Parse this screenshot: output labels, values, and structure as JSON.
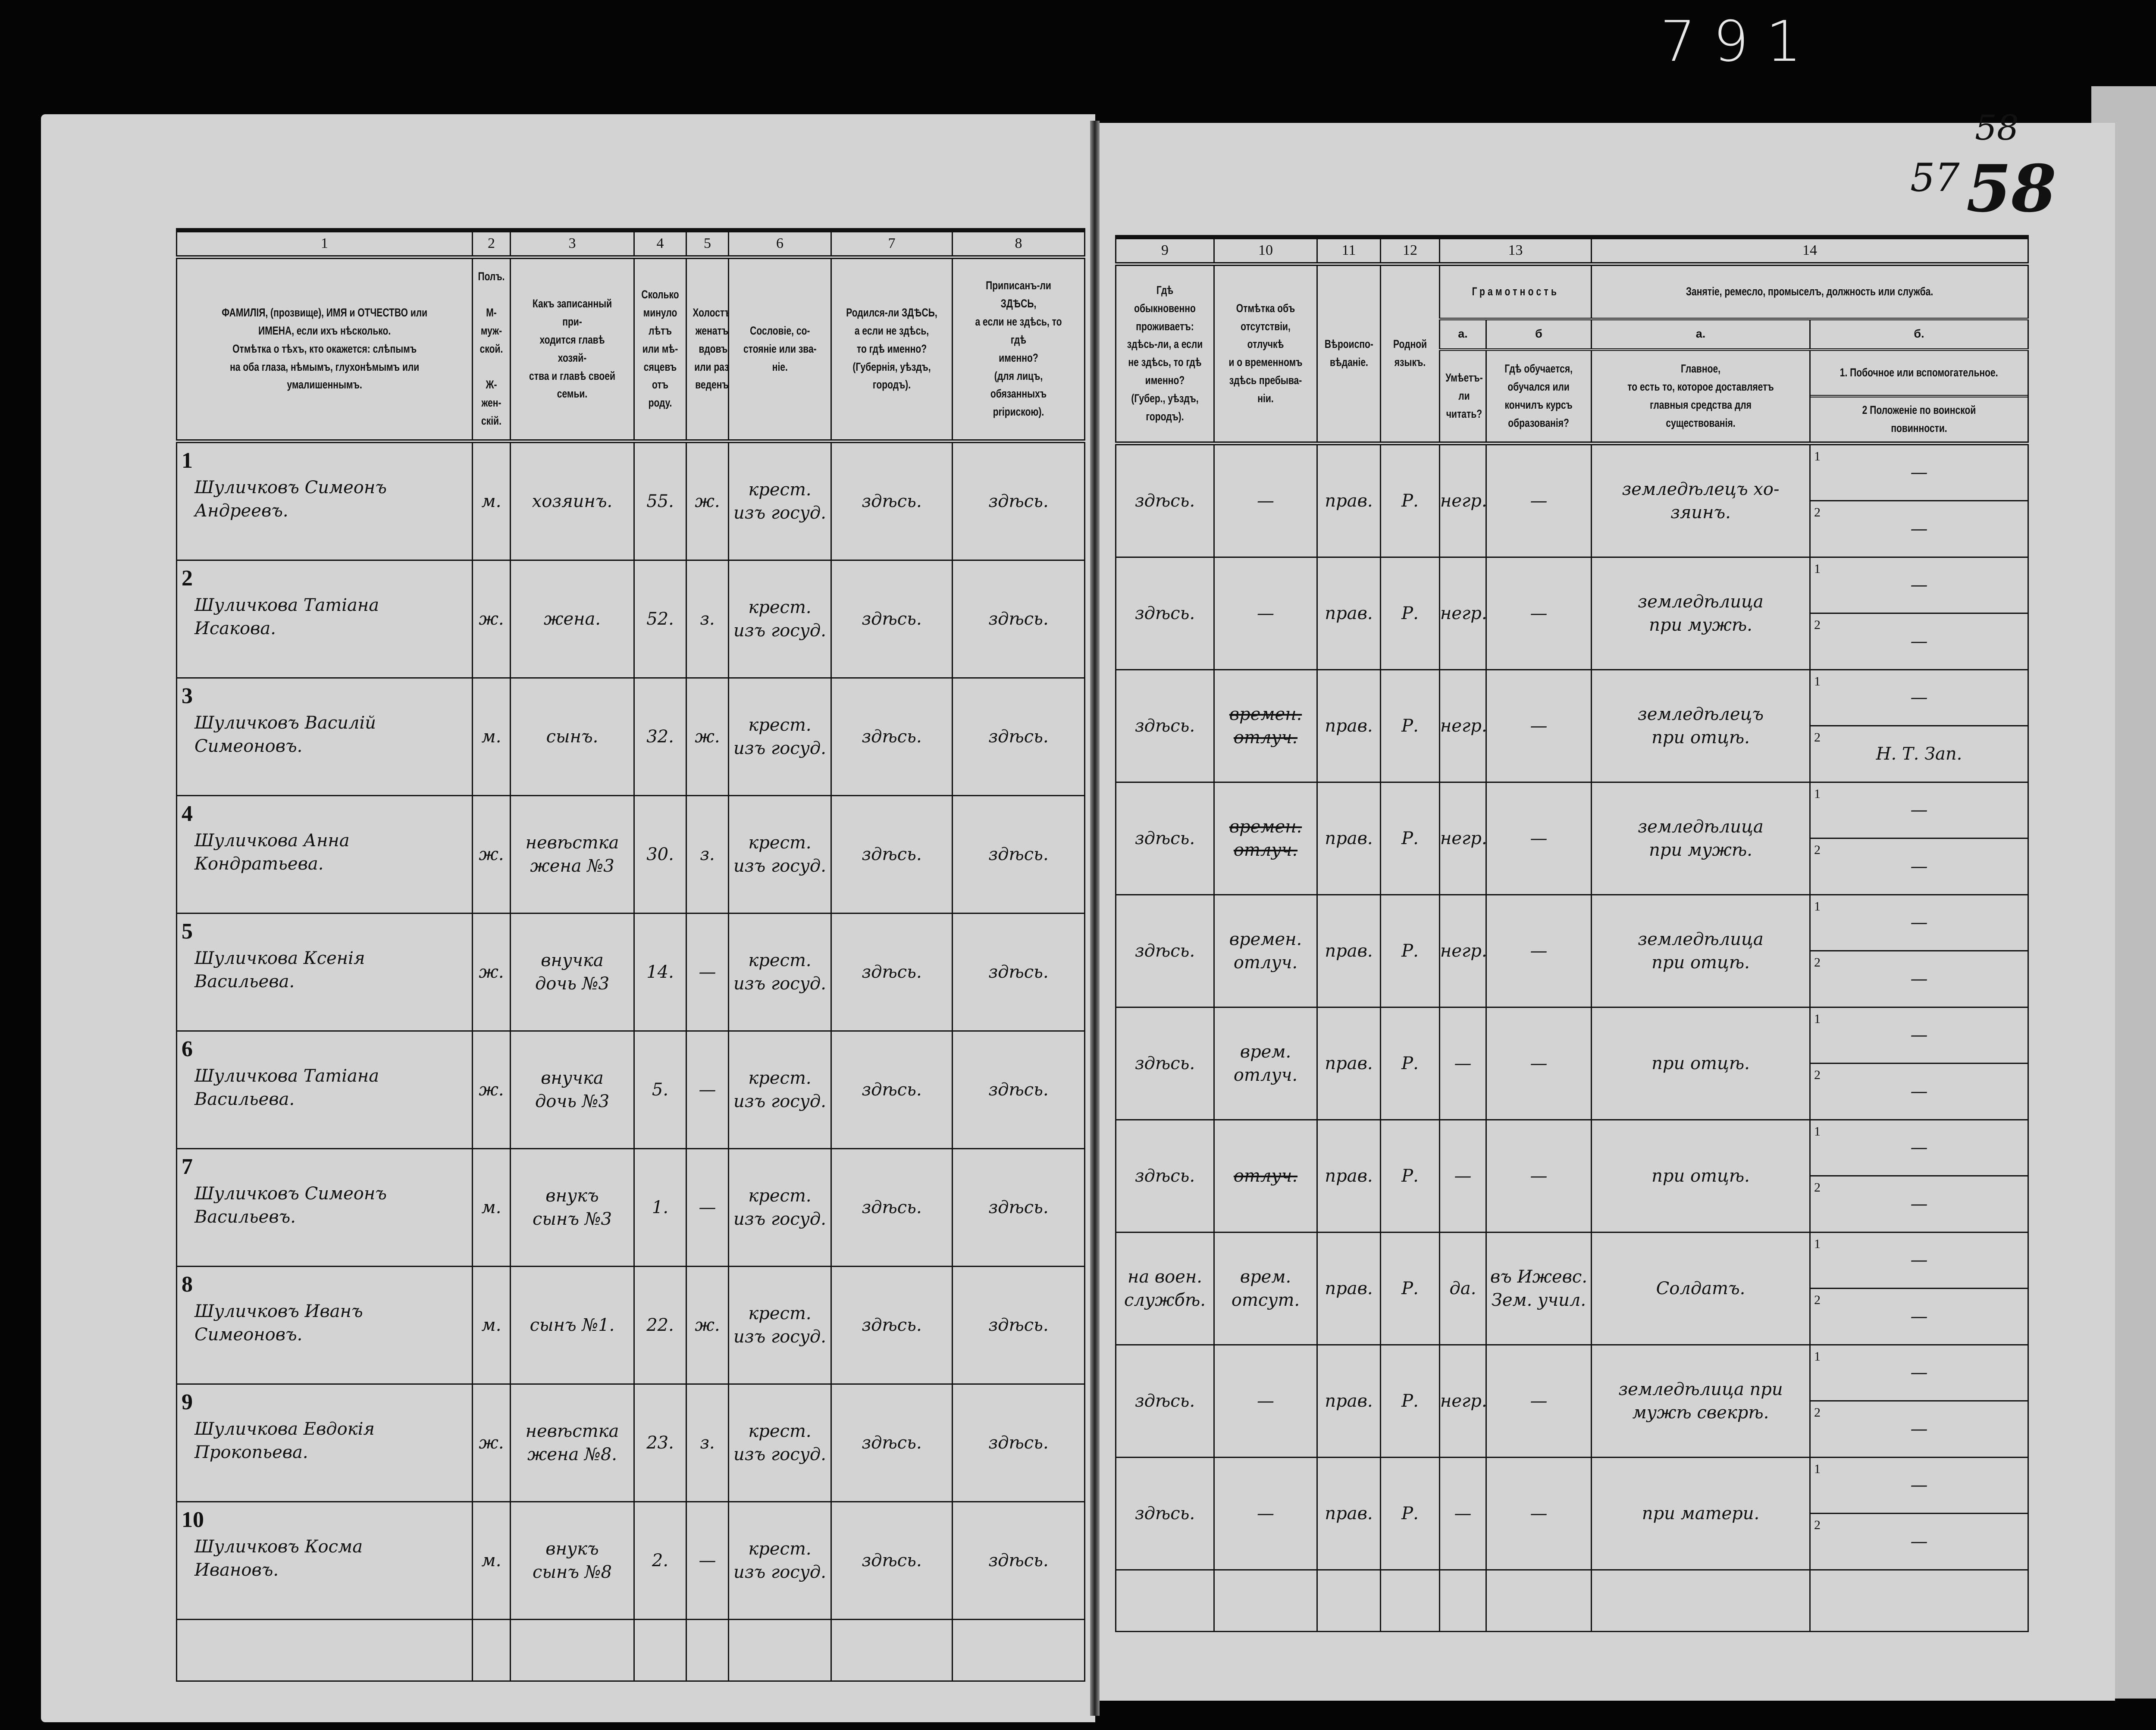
{
  "margin_marks": {
    "archive_number": "791",
    "page_number_old": "57",
    "page_number_new": "58",
    "page_number_back": "58"
  },
  "columns_left": [
    {
      "num": "1",
      "text": "ФАМИЛІЯ, (прозвище), ИМЯ и ОТЧЕСТВО или\nИМЕНА, если ихъ нѣсколько.\nОтмѣтка о тѣхъ, кто окажется: слѣпымъ\nна оба глаза, нѣмымъ, глухонѣмымъ или\nумалишеннымъ."
    },
    {
      "num": "2",
      "text": "Полъ.\n\nМ-муж-\nской.\n\nЖ-жен-\nскій."
    },
    {
      "num": "3",
      "text": "Какъ записанный при-\nходится главѣ хозяй-\nства и главѣ своей\nсемьи."
    },
    {
      "num": "4",
      "text": "Сколько\nминуло\nлѣтъ\nили мѣ-\nсяцевъ\nотъ роду."
    },
    {
      "num": "5",
      "text": "Холостъ,\nженатъ,\nвдовъ\nили раз-\nведенъ."
    },
    {
      "num": "6",
      "text": "Сословіе, со-\nстояніе или зва-\nніе."
    },
    {
      "num": "7",
      "text": "Родился-ли ЗДѢСЬ,\nа если не здѣсь,\nто гдѣ именно?\n(Губернія, уѣздъ, городъ)."
    },
    {
      "num": "8",
      "text": "Приписанъ-ли ЗДѢСЬ,\nа если не здѣсь, то гдѣ\nименно?\n(для лицъ, обязанныхъ\npripискою)."
    }
  ],
  "columns_right": {
    "c9": {
      "num": "9",
      "text": "Гдѣ обыкновенно\nпроживаетъ:\nздѣсь-ли, а если\nне здѣсь, то гдѣ\nименно?\n(Губер., уѣздъ, городъ)."
    },
    "c10": {
      "num": "10",
      "text": "Отмѣтка объ\nотсутствіи, отлучкѣ\nи о временномъ\nздѣсь пребыва-\nніи."
    },
    "c11": {
      "num": "11",
      "text": "Вѣроиспо-\nвѣданіе."
    },
    "c12": {
      "num": "12",
      "text": "Родной\nязыкъ."
    },
    "c13": {
      "num": "13",
      "title": "Грамотность",
      "a_label": "а.",
      "b_label": "б",
      "a_text": "Умѣетъ-\nли\nчитать?",
      "b_text": "Гдѣ обучается,\nобучался или\nкончилъ курсъ\nобразованія?"
    },
    "c14": {
      "num": "14",
      "title": "Занятіе, ремесло, промыселъ, должность или служба.",
      "a_label": "а.",
      "b_label": "б.",
      "a_text": "Главное,\nто есть то, которое доставляетъ\nглавныя средства для существованія.",
      "b_text_1": "1.  Побочное или вспомогательное.",
      "b_text_2": "2  Положеніе по воинской повинности."
    }
  },
  "rows": [
    {
      "n": "1",
      "name": "Шуличковъ Симеонъ\nАндреевъ.",
      "sex": "м.",
      "relation": "хозяинъ.",
      "age": "55.",
      "marital": "ж.",
      "estate": "крест.\nизъ госуд.",
      "born": "здѣсь.",
      "registered": "здѣсь.",
      "resides": "здѣсь.",
      "absence": "—",
      "absence_struck": false,
      "religion": "прав.",
      "language": "Р.",
      "literate": "негр.",
      "school": "—",
      "occupation": "земледѣлецъ хо-\nзяинъ.",
      "side": "—",
      "military": "—"
    },
    {
      "n": "2",
      "name": "Шуличкова Татіана\nИсакова.",
      "sex": "ж.",
      "relation": "жена.",
      "age": "52.",
      "marital": "з.",
      "estate": "крест.\nизъ госуд.",
      "born": "здѣсь.",
      "registered": "здѣсь.",
      "resides": "здѣсь.",
      "absence": "—",
      "absence_struck": false,
      "religion": "прав.",
      "language": "Р.",
      "literate": "негр.",
      "school": "—",
      "occupation": "земледѣлица\nпри мужѣ.",
      "side": "—",
      "military": "—"
    },
    {
      "n": "3",
      "name": "Шуличковъ Василій\nСимеоновъ.",
      "sex": "м.",
      "relation": "сынъ.",
      "age": "32.",
      "marital": "ж.",
      "estate": "крест.\nизъ госуд.",
      "born": "здѣсь.",
      "registered": "здѣсь.",
      "resides": "здѣсь.",
      "absence": "времен.\nотлуч.",
      "absence_struck": true,
      "religion": "прав.",
      "language": "Р.",
      "literate": "негр.",
      "school": "—",
      "occupation": "земледѣлецъ\nпри отцѣ.",
      "side": "—",
      "military": "Н. Т. Зап."
    },
    {
      "n": "4",
      "name": "Шуличкова Анна\nКондратьева.",
      "sex": "ж.",
      "relation": "невѣстка\nжена №3",
      "age": "30.",
      "marital": "з.",
      "estate": "крест.\nизъ госуд.",
      "born": "здѣсь.",
      "registered": "здѣсь.",
      "resides": "здѣсь.",
      "absence": "времен.\nотлуч.",
      "absence_struck": true,
      "religion": "прав.",
      "language": "Р.",
      "literate": "негр.",
      "school": "—",
      "occupation": "земледѣлица\nпри мужѣ.",
      "side": "—",
      "military": "—"
    },
    {
      "n": "5",
      "name": "Шуличкова Ксенія\nВасильева.",
      "sex": "ж.",
      "relation": "внучка\nдочь №3",
      "age": "14.",
      "marital": "—",
      "estate": "крест.\nизъ госуд.",
      "born": "здѣсь.",
      "registered": "здѣсь.",
      "resides": "здѣсь.",
      "absence": "времен.\nотлуч.",
      "absence_struck": false,
      "religion": "прав.",
      "language": "Р.",
      "literate": "негр.",
      "school": "—",
      "occupation": "земледѣлица\nпри отцѣ.",
      "side": "—",
      "military": "—"
    },
    {
      "n": "6",
      "name": "Шуличкова Татіана\nВасильева.",
      "sex": "ж.",
      "relation": "внучка\nдочь №3",
      "age": "5.",
      "marital": "—",
      "estate": "крест.\nизъ госуд.",
      "born": "здѣсь.",
      "registered": "здѣсь.",
      "resides": "здѣсь.",
      "absence": "врем.\nотлуч.",
      "absence_struck": false,
      "religion": "прав.",
      "language": "Р.",
      "literate": "—",
      "school": "—",
      "occupation": "при отцѣ.",
      "side": "—",
      "military": "—"
    },
    {
      "n": "7",
      "name": "Шуличковъ Симеонъ\nВасильевъ.",
      "sex": "м.",
      "relation": "внукъ\nсынъ №3",
      "age": "1.",
      "marital": "—",
      "estate": "крест.\nизъ госуд.",
      "born": "здѣсь.",
      "registered": "здѣсь.",
      "resides": "здѣсь.",
      "absence": "отлуч.",
      "absence_struck": true,
      "religion": "прав.",
      "language": "Р.",
      "literate": "—",
      "school": "—",
      "occupation": "при отцѣ.",
      "side": "—",
      "military": "—"
    },
    {
      "n": "8",
      "name": "Шуличковъ Иванъ\nСимеоновъ.",
      "sex": "м.",
      "relation": "сынъ №1.",
      "age": "22.",
      "marital": "ж.",
      "estate": "крест.\nизъ госуд.",
      "born": "здѣсь.",
      "registered": "здѣсь.",
      "resides": "на воен.\nслужбѣ.",
      "absence": "врем.\nотсут.",
      "absence_struck": false,
      "religion": "прав.",
      "language": "Р.",
      "literate": "да.",
      "school": "въ Ижевс.\nЗем. учил.",
      "occupation": "Солдатъ.",
      "side": "—",
      "military": "—"
    },
    {
      "n": "9",
      "name": "Шуличкова Евдокія\nПрокопьева.",
      "sex": "ж.",
      "relation": "невѣстка\nжена №8.",
      "age": "23.",
      "marital": "з.",
      "estate": "крест.\nизъ госуд.",
      "born": "здѣсь.",
      "registered": "здѣсь.",
      "resides": "здѣсь.",
      "absence": "—",
      "absence_struck": false,
      "religion": "прав.",
      "language": "Р.",
      "literate": "негр.",
      "school": "—",
      "occupation": "земледѣлица при\nмужѣ свекрѣ.",
      "side": "—",
      "military": "—"
    },
    {
      "n": "10",
      "name": "Шуличковъ Косма\nИвановъ.",
      "sex": "м.",
      "relation": "внукъ\nсынъ №8",
      "age": "2.",
      "marital": "—",
      "estate": "крест.\nизъ госуд.",
      "born": "здѣсь.",
      "registered": "здѣсь.",
      "resides": "здѣсь.",
      "absence": "—",
      "absence_struck": false,
      "religion": "прав.",
      "language": "Р.",
      "literate": "—",
      "school": "—",
      "occupation": "при матери.",
      "side": "—",
      "military": "—"
    }
  ],
  "sub_labels": {
    "one": "1",
    "two": "2"
  }
}
